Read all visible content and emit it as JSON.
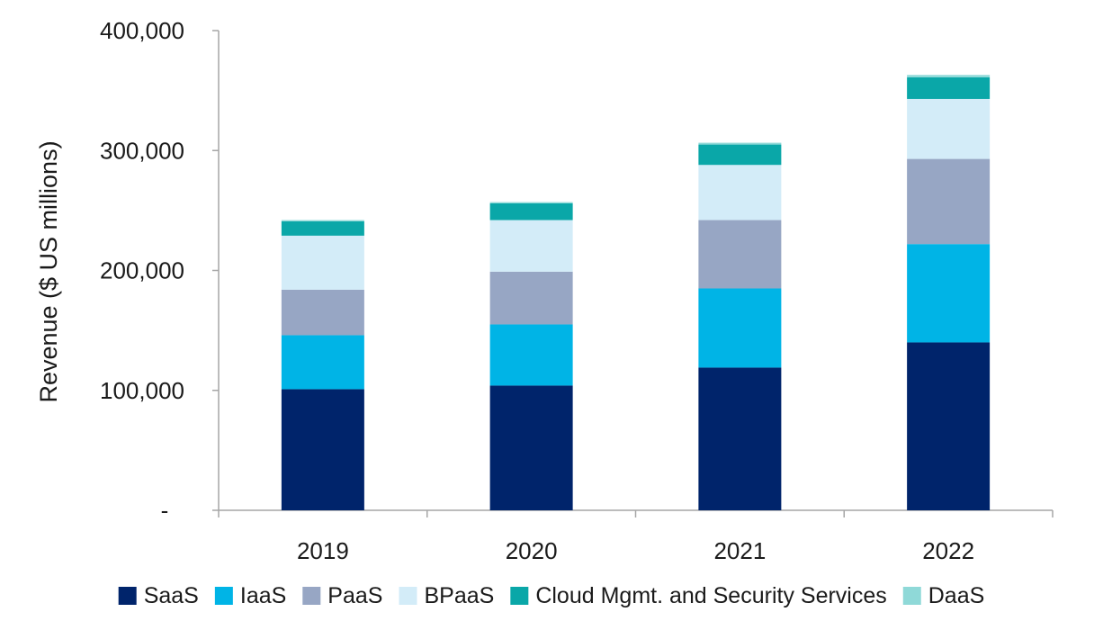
{
  "chart_data": {
    "type": "bar",
    "stacked": true,
    "categories": [
      "2019",
      "2020",
      "2021",
      "2022"
    ],
    "ylabel": "Revenue ($ US millions)",
    "xlabel": "",
    "ylim": [
      0,
      400000
    ],
    "yticks": [
      {
        "value": 0,
        "label": "-"
      },
      {
        "value": 100000,
        "label": "100,000"
      },
      {
        "value": 200000,
        "label": "200,000"
      },
      {
        "value": 300000,
        "label": "300,000"
      },
      {
        "value": 400000,
        "label": "400,000"
      }
    ],
    "legend_position": "bottom",
    "grid": false,
    "series": [
      {
        "name": "SaaS",
        "color": "#00246b",
        "values": [
          101000,
          104000,
          119000,
          140000
        ]
      },
      {
        "name": "IaaS",
        "color": "#00b4e6",
        "values": [
          45000,
          51000,
          66000,
          82000
        ]
      },
      {
        "name": "PaaS",
        "color": "#97a6c4",
        "values": [
          38000,
          44000,
          57000,
          71000
        ]
      },
      {
        "name": "BPaaS",
        "color": "#d3ecf8",
        "values": [
          45000,
          43000,
          46000,
          50000
        ]
      },
      {
        "name": "Cloud Mgmt. and Security Services",
        "color": "#0aa7a8",
        "values": [
          12000,
          14000,
          17000,
          18000
        ]
      },
      {
        "name": "DaaS",
        "color": "#8fd9d8",
        "values": [
          1000,
          1000,
          1500,
          2000
        ]
      }
    ]
  }
}
